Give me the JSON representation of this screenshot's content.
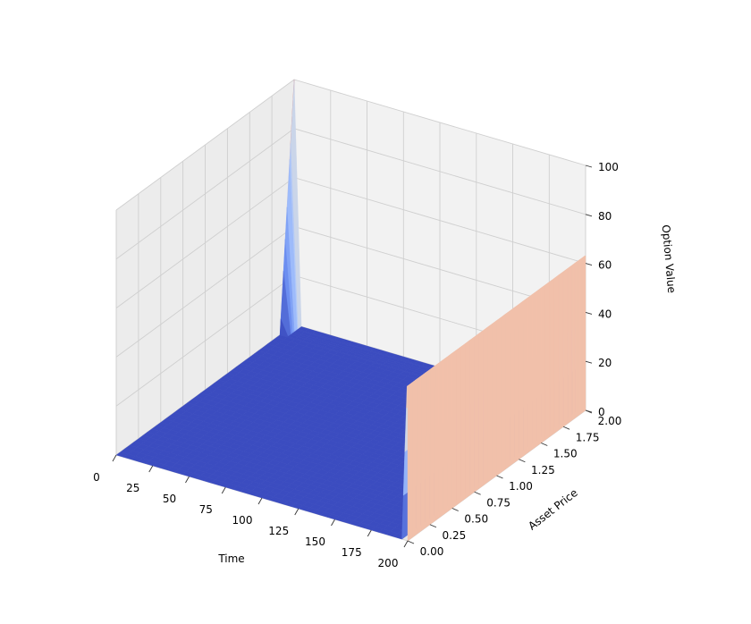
{
  "chart_data": {
    "type": "surface",
    "title": "",
    "colormap": "coolwarm",
    "colormap_colors": [
      "#3b4cc0",
      "#6f92f3",
      "#aac7fd",
      "#dddddd",
      "#f7b89c",
      "#e7745b",
      "#b40426"
    ],
    "pane_color": "#f2f2f2",
    "grid_color": "#cfcfcf",
    "grid": true,
    "axes": {
      "x": {
        "label": "Time",
        "lim": [
          0,
          200
        ],
        "ticks": [
          "0",
          "25",
          "50",
          "75",
          "100",
          "125",
          "150",
          "175",
          "200"
        ]
      },
      "y": {
        "label": "Asset Price",
        "lim": [
          0,
          2
        ],
        "ticks": [
          "0.00",
          "0.25",
          "0.50",
          "0.75",
          "1.00",
          "1.25",
          "1.50",
          "1.75",
          "2.00"
        ]
      },
      "z": {
        "label": "Option Value",
        "lim": [
          0,
          100
        ],
        "ticks": [
          "0",
          "20",
          "40",
          "60",
          "80",
          "100"
        ]
      }
    },
    "series": [
      {
        "x": 0,
        "y": 0.0,
        "z": 0
      },
      {
        "x": 0,
        "y": 0.5,
        "z": 0
      },
      {
        "x": 0,
        "y": 1.0,
        "z": 0
      },
      {
        "x": 0,
        "y": 1.5,
        "z": 0
      },
      {
        "x": 0,
        "y": 1.9,
        "z": 0
      },
      {
        "x": 0,
        "y": 2.0,
        "z": 100
      },
      {
        "x": 195,
        "y": 0.0,
        "z": 0
      },
      {
        "x": 198,
        "y": 0.0,
        "z": 8
      },
      {
        "x": 200,
        "y": 0.0,
        "z": 63
      },
      {
        "x": 200,
        "y": 0.5,
        "z": 63
      },
      {
        "x": 200,
        "y": 1.0,
        "z": 63
      },
      {
        "x": 200,
        "y": 1.5,
        "z": 63
      },
      {
        "x": 200,
        "y": 2.0,
        "z": 63
      }
    ]
  }
}
